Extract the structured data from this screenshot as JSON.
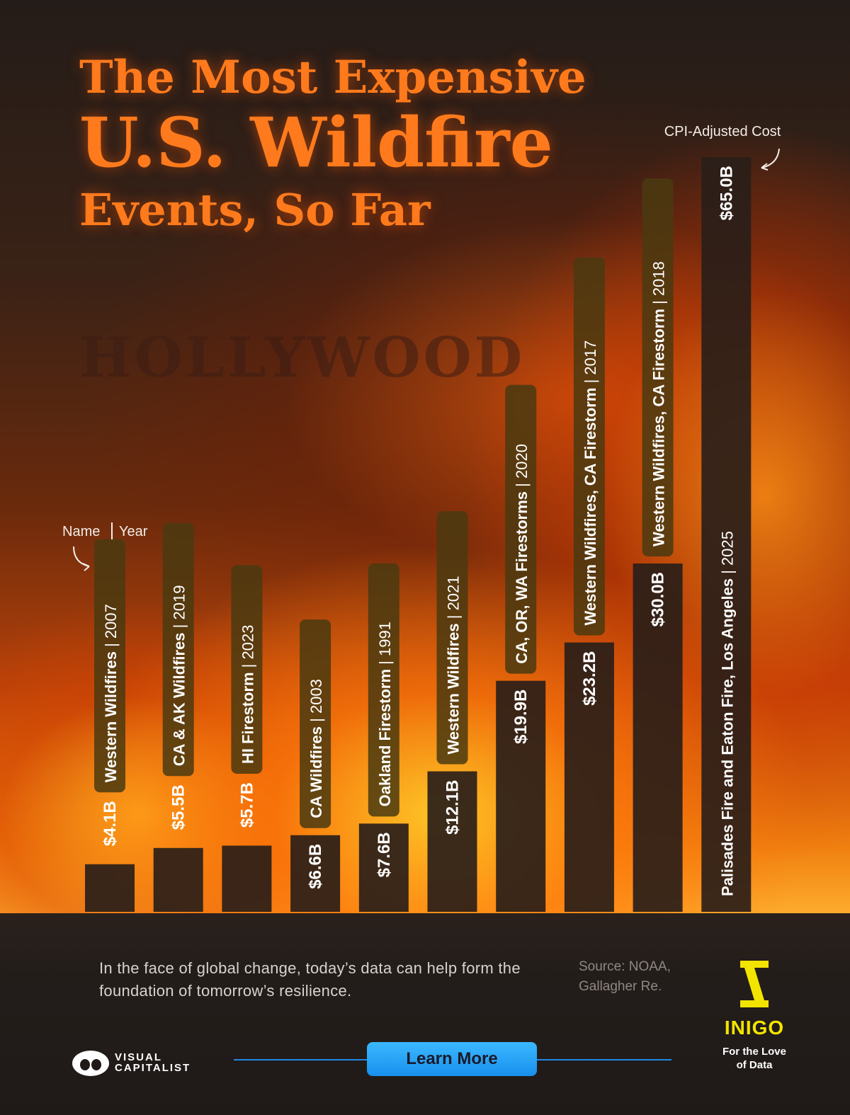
{
  "title": {
    "line1": "The Most Expensive",
    "line2": "U.S. Wildfire",
    "line3": "Events, So Far"
  },
  "annotations": {
    "value_label": "CPI-Adjusted Cost",
    "name_label": "Name",
    "year_label": "Year"
  },
  "background_text": "HOLLYWOOD",
  "chart_data": {
    "type": "bar",
    "value_prefix": "$",
    "value_suffix": "B",
    "categories": [
      "Western Wildfires | 2007",
      "CA & AK Wildfires | 2019",
      "HI Firestorm | 2023",
      "CA Wildfires | 2003",
      "Oakland Firestorm | 1991",
      "Western Wildfires | 2021",
      "CA, OR, WA Firestorms | 2020",
      "Western Wildfires, CA Firestorm | 2017",
      "Western Wildfires, CA Firestorm | 2018",
      "Palisades Fire and Eaton Fire, Los Angeles | 2025"
    ],
    "series": [
      {
        "values": [
          4.1,
          5.5,
          5.7,
          6.6,
          7.6,
          12.1,
          19.9,
          23.2,
          30.0,
          65.0
        ],
        "labels": [
          "$4.1B",
          "$5.5B",
          "$5.7B",
          "$6.6B",
          "$7.6B",
          "$12.1B",
          "$19.9B",
          "$23.2B",
          "$30.0B",
          "$65.0B"
        ]
      }
    ],
    "bars": [
      {
        "name": "Western Wildfires",
        "year": "2007",
        "value": 4.1,
        "label": "$4.1B"
      },
      {
        "name": "CA & AK Wildfires",
        "year": "2019",
        "value": 5.5,
        "label": "$5.5B"
      },
      {
        "name": "HI Firestorm",
        "year": "2023",
        "value": 5.7,
        "label": "$5.7B"
      },
      {
        "name": "CA Wildfires",
        "year": "2003",
        "value": 6.6,
        "label": "$6.6B"
      },
      {
        "name": "Oakland Firestorm",
        "year": "1991",
        "value": 7.6,
        "label": "$7.6B"
      },
      {
        "name": "Western Wildfires",
        "year": "2021",
        "value": 12.1,
        "label": "$12.1B"
      },
      {
        "name": "CA, OR, WA Firestorms",
        "year": "2020",
        "value": 19.9,
        "label": "$19.9B"
      },
      {
        "name": "Western Wildfires, CA Firestorm",
        "year": "2017",
        "value": 23.2,
        "label": "$23.2B"
      },
      {
        "name": "Western Wildfires, CA Firestorm",
        "year": "2018",
        "value": 30.0,
        "label": "$30.0B"
      },
      {
        "name": "Palisades Fire and Eaton Fire, Los Angeles",
        "year": "2025",
        "value": 65.0,
        "label": "$65.0B"
      }
    ],
    "ylim": [
      0,
      65
    ],
    "grid": false,
    "legend": "none"
  },
  "footer": {
    "caption": "In the face of global change, today’s data can help form the foundation of tomorrow’s resilience.",
    "source": "Source: NOAA, Gallagher Re.",
    "brand_name": "INIGO",
    "brand_tagline": "For the Love of Data",
    "publisher_line1": "VISUAL",
    "publisher_line2": "CAPITALIST",
    "button_label": "Learn More"
  },
  "colors": {
    "title": "#ff7a1c",
    "bar_fill": "#2a1e19",
    "label_pill": "#4a3a10",
    "inigo_yellow": "#f3e400",
    "button_blue": "#1790ee"
  }
}
